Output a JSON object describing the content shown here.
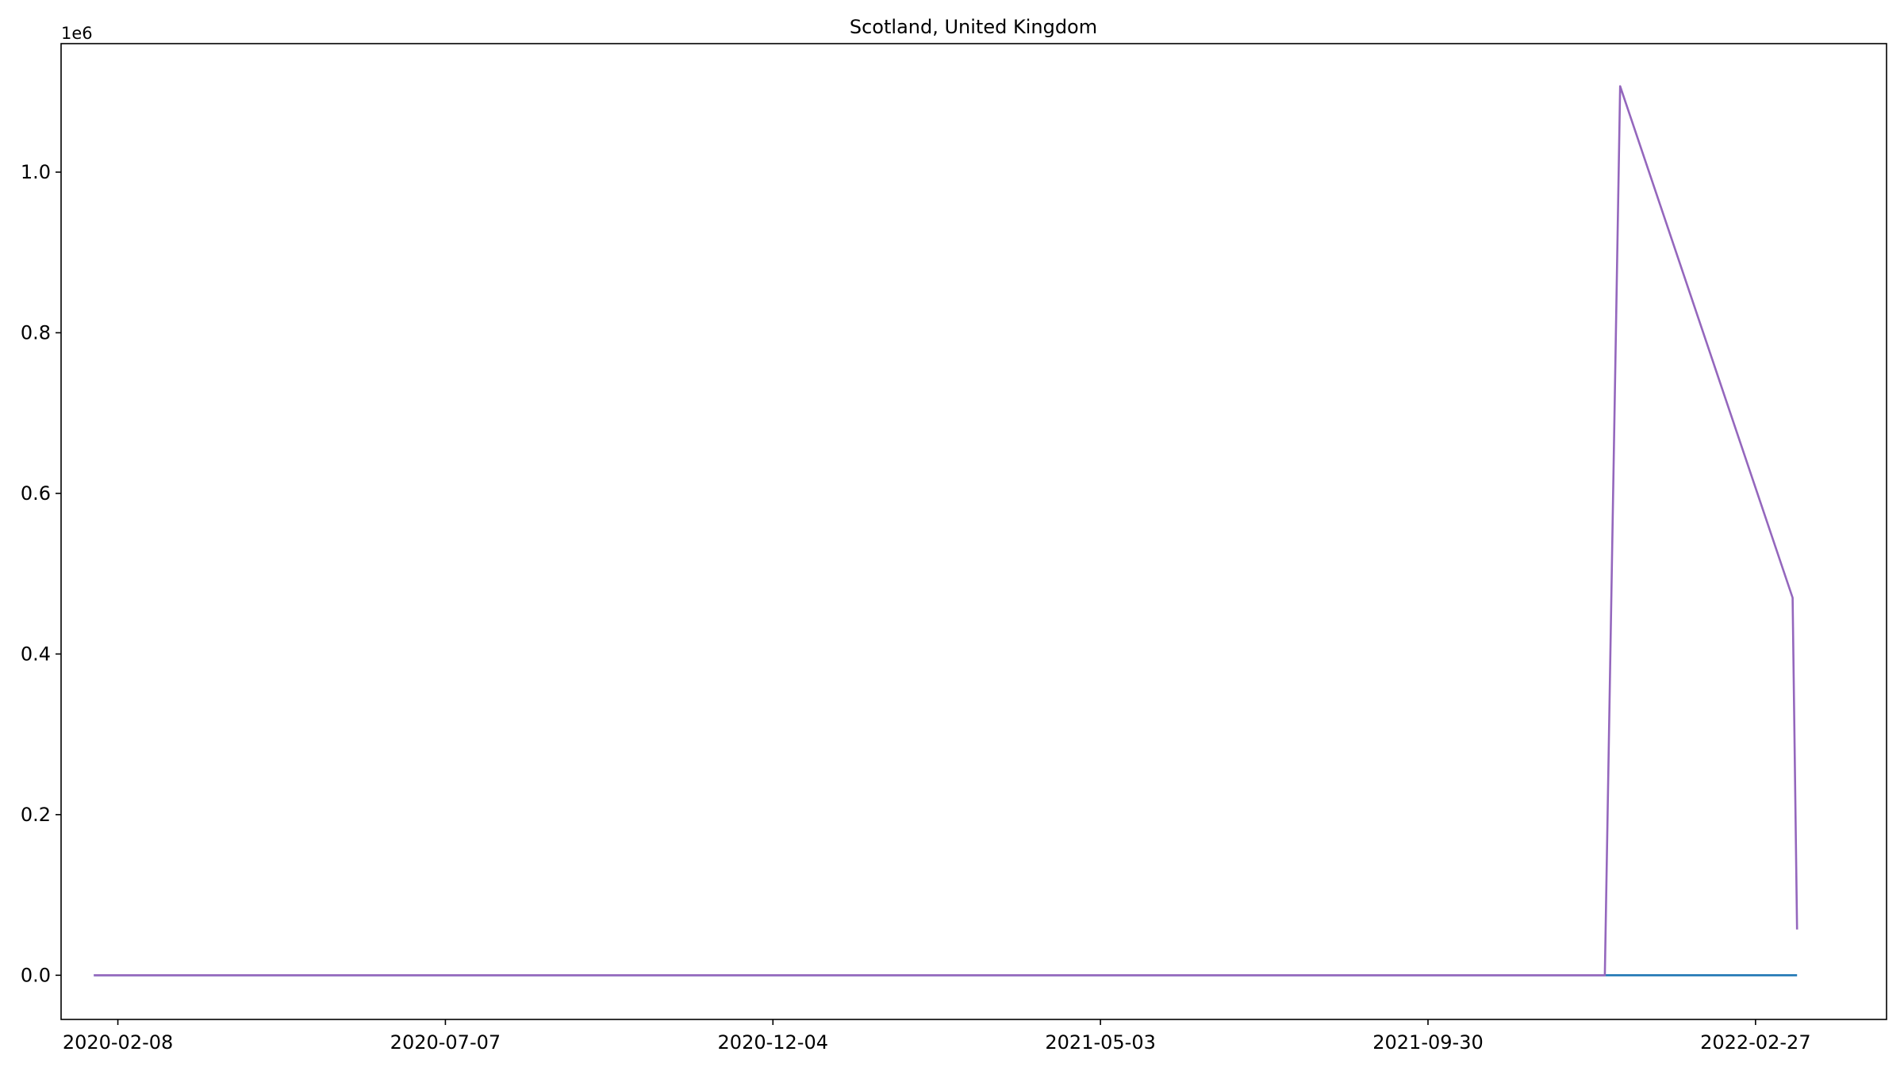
{
  "chart_data": {
    "type": "line",
    "title": "Scotland, United Kingdom",
    "xlabel": "",
    "ylabel": "",
    "y_offset_label": "1e6",
    "x_is_date": true,
    "xlim": [
      "2020-01-13",
      "2022-04-28"
    ],
    "ylim": [
      -55000,
      1160000
    ],
    "x_ticks": [
      "2020-02-08",
      "2020-07-07",
      "2020-12-04",
      "2021-05-03",
      "2021-09-30",
      "2022-02-27"
    ],
    "y_ticks": [
      0,
      200000,
      400000,
      600000,
      800000,
      1000000
    ],
    "y_tick_labels": [
      "0.0",
      "0.2",
      "0.4",
      "0.6",
      "0.8",
      "1.0"
    ],
    "grid": false,
    "legend": false,
    "series": [
      {
        "color": "#1f77b4",
        "points": [
          [
            "2020-01-28",
            0
          ],
          [
            "2022-03-18",
            0
          ]
        ]
      },
      {
        "color": "#9467bd",
        "points": [
          [
            "2020-01-28",
            0
          ],
          [
            "2021-12-20",
            0
          ],
          [
            "2021-12-27",
            1107000
          ],
          [
            "2022-03-16",
            470000
          ],
          [
            "2022-03-18",
            57000
          ]
        ]
      }
    ]
  }
}
